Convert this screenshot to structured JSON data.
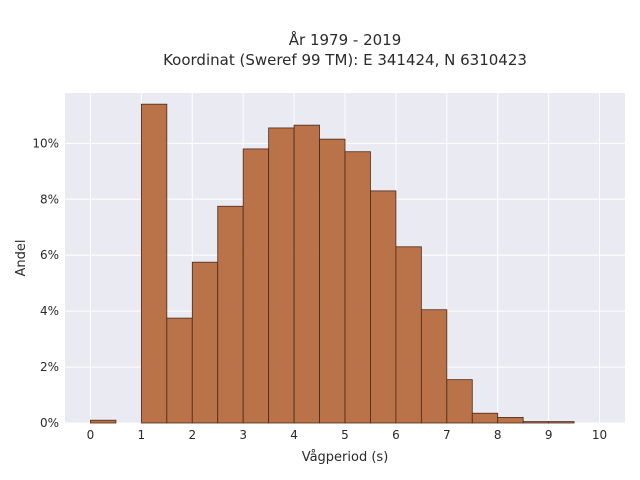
{
  "chart_data": {
    "type": "bar",
    "title": "År 1979 - 2019",
    "subtitle": "Koordinat (Sweref 99 TM): E 341424, N 6310423",
    "xlabel": "Vågperiod (s)",
    "ylabel": "Andel",
    "bin_width": 0.5,
    "bins": [
      {
        "x0": 0.0,
        "x1": 0.5,
        "value": 0.1
      },
      {
        "x0": 0.5,
        "x1": 1.0,
        "value": 0.0
      },
      {
        "x0": 1.0,
        "x1": 1.5,
        "value": 11.4
      },
      {
        "x0": 1.5,
        "x1": 2.0,
        "value": 3.75
      },
      {
        "x0": 2.0,
        "x1": 2.5,
        "value": 5.75
      },
      {
        "x0": 2.5,
        "x1": 3.0,
        "value": 7.75
      },
      {
        "x0": 3.0,
        "x1": 3.5,
        "value": 9.8
      },
      {
        "x0": 3.5,
        "x1": 4.0,
        "value": 10.55
      },
      {
        "x0": 4.0,
        "x1": 4.5,
        "value": 10.65
      },
      {
        "x0": 4.5,
        "x1": 5.0,
        "value": 10.15
      },
      {
        "x0": 5.0,
        "x1": 5.5,
        "value": 9.7
      },
      {
        "x0": 5.5,
        "x1": 6.0,
        "value": 8.3
      },
      {
        "x0": 6.0,
        "x1": 6.5,
        "value": 6.3
      },
      {
        "x0": 6.5,
        "x1": 7.0,
        "value": 4.05
      },
      {
        "x0": 7.0,
        "x1": 7.5,
        "value": 1.55
      },
      {
        "x0": 7.5,
        "x1": 8.0,
        "value": 0.35
      },
      {
        "x0": 8.0,
        "x1": 8.5,
        "value": 0.2
      },
      {
        "x0": 8.5,
        "x1": 9.0,
        "value": 0.05
      },
      {
        "x0": 9.0,
        "x1": 9.5,
        "value": 0.05
      },
      {
        "x0": 9.5,
        "x1": 10.0,
        "value": 0.0
      }
    ],
    "xlim": [
      -0.5,
      10.5
    ],
    "ylim": [
      0,
      11.8
    ],
    "xticks": [
      0,
      1,
      2,
      3,
      4,
      5,
      6,
      7,
      8,
      9,
      10
    ],
    "xtick_labels": [
      "0",
      "1",
      "2",
      "3",
      "4",
      "5",
      "6",
      "7",
      "8",
      "9",
      "10"
    ],
    "yticks": [
      0,
      2,
      4,
      6,
      8,
      10
    ],
    "ytick_labels": [
      "0%",
      "2%",
      "4%",
      "6%",
      "8%",
      "10%"
    ],
    "grid": true,
    "legend": "none",
    "colors": {
      "bar_fill": "#b5673b",
      "bar_stroke": "#4a2a1a",
      "plot_background": "#eaeaf2",
      "grid": "#ffffff",
      "text": "#2a2a2a"
    }
  }
}
